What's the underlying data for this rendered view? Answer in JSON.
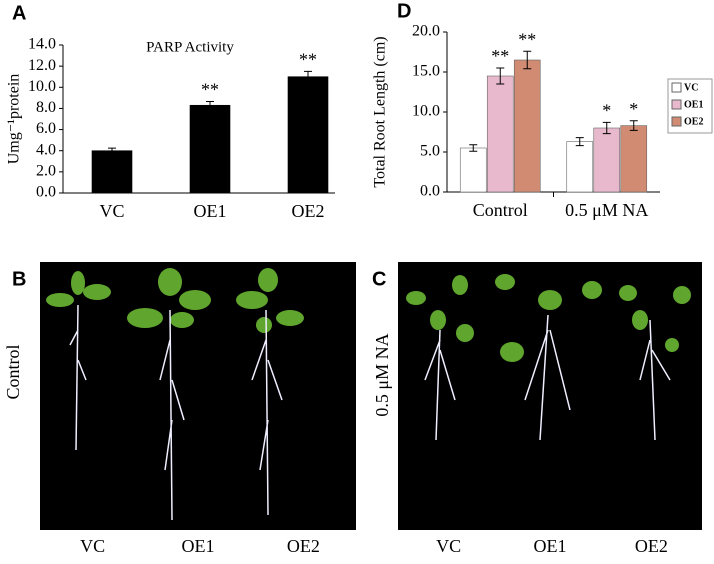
{
  "chart_data": [
    {
      "type": "bar",
      "panel_label": "A",
      "title": "PARP Activity",
      "y_label": "Umg⁻¹protein",
      "categories": [
        "VC",
        "OE1",
        "OE2"
      ],
      "values": [
        4.0,
        8.3,
        11.0
      ],
      "errors": [
        0.25,
        0.35,
        0.5
      ],
      "value_annotations": [
        null,
        "**",
        "**"
      ],
      "color": "#000000",
      "ylim": [
        0,
        14
      ],
      "yticks": [
        {
          "value": 0,
          "label": "0.0"
        },
        {
          "value": 2,
          "label": "2.0"
        },
        {
          "value": 4,
          "label": "4.0"
        },
        {
          "value": 6,
          "label": "6.0"
        },
        {
          "value": 8,
          "label": "8.0"
        },
        {
          "value": 10,
          "label": "10.0"
        },
        {
          "value": 12,
          "label": "12.0"
        },
        {
          "value": 14,
          "label": "14.0"
        }
      ],
      "grid": false
    },
    {
      "type": "bar",
      "panel_label": "D",
      "y_label": "Total Root Length (cm)",
      "categories": [
        "Control",
        "0.5 μM NA"
      ],
      "series": [
        {
          "name": "VC",
          "color": "#ffffff",
          "values": [
            5.5,
            6.3
          ],
          "errors": [
            0.4,
            0.5
          ],
          "annotations": [
            null,
            null
          ]
        },
        {
          "name": "OE1",
          "color": "#e8b9cc",
          "values": [
            14.5,
            8.0
          ],
          "errors": [
            1.0,
            0.7
          ],
          "annotations": [
            "**",
            "*"
          ]
        },
        {
          "name": "OE2",
          "color": "#d08b72",
          "values": [
            16.5,
            8.3
          ],
          "errors": [
            1.1,
            0.6
          ],
          "annotations": [
            "**",
            "*"
          ]
        }
      ],
      "ylim": [
        0,
        20
      ],
      "yticks": [
        {
          "value": 0,
          "label": "0.0"
        },
        {
          "value": 5,
          "label": "5.0"
        },
        {
          "value": 10,
          "label": "10.0"
        },
        {
          "value": 15,
          "label": "15.0"
        },
        {
          "value": 20,
          "label": "20.0"
        }
      ],
      "grid": false,
      "legend": "right"
    }
  ],
  "panels": [
    {
      "label": "B",
      "condition": "Control",
      "genotypes": [
        "VC",
        "OE1",
        "OE2"
      ]
    },
    {
      "label": "C",
      "condition": "0.5 μM NA",
      "genotypes": [
        "VC",
        "OE1",
        "OE2"
      ]
    }
  ]
}
